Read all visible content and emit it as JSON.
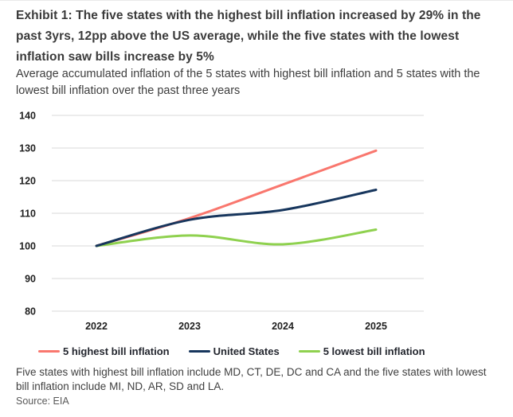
{
  "header": {
    "title": "Exhibit 1: The five states with the highest bill inflation increased by 29% in the past 3yrs, 12pp above the US average, while the five states with the lowest inflation saw bills increase by 5%",
    "subtitle": "Average accumulated inflation of the 5 states with highest bill inflation and 5 states with the lowest bill inflation over the past three years"
  },
  "chart_data": {
    "type": "line",
    "x": [
      "2022",
      "2023",
      "2024",
      "2025"
    ],
    "series": [
      {
        "name": "5 highest bill inflation",
        "color": "#f9776e",
        "values": [
          100,
          108.5,
          118.8,
          129.2
        ]
      },
      {
        "name": "United States",
        "color": "#17365d",
        "values": [
          100,
          108,
          111,
          117.2
        ]
      },
      {
        "name": "5 lowest bill inflation",
        "color": "#8fd14f",
        "values": [
          100,
          103.2,
          100.5,
          105
        ]
      }
    ],
    "draw_order": [
      0,
      2,
      1
    ],
    "ylim": [
      80,
      140
    ],
    "ytick_step": 10,
    "grid": true,
    "gridline_color": "#d9d9d9",
    "legend_position": "bottom",
    "title": "",
    "xlabel": "",
    "ylabel": ""
  },
  "footnote": {
    "text": "Five states with highest bill inflation include MD, CT, DE, DC and CA and the five states with lowest bill inflation include MI, ND, AR, SD and LA."
  },
  "source": {
    "text": "Source: EIA"
  }
}
